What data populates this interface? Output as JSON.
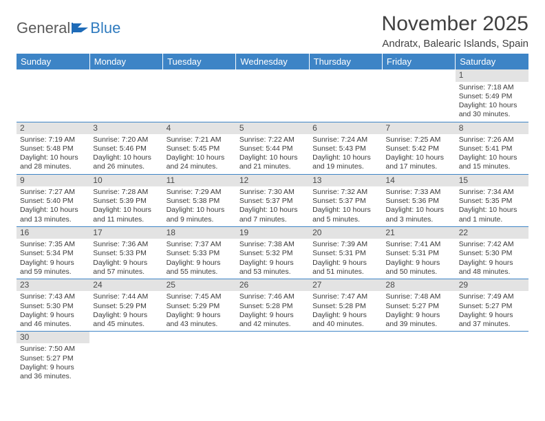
{
  "brand": {
    "word1": "General",
    "word2": "Blue"
  },
  "title": "November 2025",
  "location": "Andratx, Balearic Islands, Spain",
  "colors": {
    "header_bg": "#3d84c6",
    "header_text": "#ffffff",
    "daynum_bg": "#e3e3e3",
    "rule": "#3d84c6",
    "text": "#3a3a3a",
    "title": "#404040"
  },
  "weekdays": [
    "Sunday",
    "Monday",
    "Tuesday",
    "Wednesday",
    "Thursday",
    "Friday",
    "Saturday"
  ],
  "grid": [
    [
      null,
      null,
      null,
      null,
      null,
      null,
      {
        "n": "1",
        "sr": "7:18 AM",
        "ss": "5:49 PM",
        "dl": "10 hours and 30 minutes."
      }
    ],
    [
      {
        "n": "2",
        "sr": "7:19 AM",
        "ss": "5:48 PM",
        "dl": "10 hours and 28 minutes."
      },
      {
        "n": "3",
        "sr": "7:20 AM",
        "ss": "5:46 PM",
        "dl": "10 hours and 26 minutes."
      },
      {
        "n": "4",
        "sr": "7:21 AM",
        "ss": "5:45 PM",
        "dl": "10 hours and 24 minutes."
      },
      {
        "n": "5",
        "sr": "7:22 AM",
        "ss": "5:44 PM",
        "dl": "10 hours and 21 minutes."
      },
      {
        "n": "6",
        "sr": "7:24 AM",
        "ss": "5:43 PM",
        "dl": "10 hours and 19 minutes."
      },
      {
        "n": "7",
        "sr": "7:25 AM",
        "ss": "5:42 PM",
        "dl": "10 hours and 17 minutes."
      },
      {
        "n": "8",
        "sr": "7:26 AM",
        "ss": "5:41 PM",
        "dl": "10 hours and 15 minutes."
      }
    ],
    [
      {
        "n": "9",
        "sr": "7:27 AM",
        "ss": "5:40 PM",
        "dl": "10 hours and 13 minutes."
      },
      {
        "n": "10",
        "sr": "7:28 AM",
        "ss": "5:39 PM",
        "dl": "10 hours and 11 minutes."
      },
      {
        "n": "11",
        "sr": "7:29 AM",
        "ss": "5:38 PM",
        "dl": "10 hours and 9 minutes."
      },
      {
        "n": "12",
        "sr": "7:30 AM",
        "ss": "5:37 PM",
        "dl": "10 hours and 7 minutes."
      },
      {
        "n": "13",
        "sr": "7:32 AM",
        "ss": "5:37 PM",
        "dl": "10 hours and 5 minutes."
      },
      {
        "n": "14",
        "sr": "7:33 AM",
        "ss": "5:36 PM",
        "dl": "10 hours and 3 minutes."
      },
      {
        "n": "15",
        "sr": "7:34 AM",
        "ss": "5:35 PM",
        "dl": "10 hours and 1 minute."
      }
    ],
    [
      {
        "n": "16",
        "sr": "7:35 AM",
        "ss": "5:34 PM",
        "dl": "9 hours and 59 minutes."
      },
      {
        "n": "17",
        "sr": "7:36 AM",
        "ss": "5:33 PM",
        "dl": "9 hours and 57 minutes."
      },
      {
        "n": "18",
        "sr": "7:37 AM",
        "ss": "5:33 PM",
        "dl": "9 hours and 55 minutes."
      },
      {
        "n": "19",
        "sr": "7:38 AM",
        "ss": "5:32 PM",
        "dl": "9 hours and 53 minutes."
      },
      {
        "n": "20",
        "sr": "7:39 AM",
        "ss": "5:31 PM",
        "dl": "9 hours and 51 minutes."
      },
      {
        "n": "21",
        "sr": "7:41 AM",
        "ss": "5:31 PM",
        "dl": "9 hours and 50 minutes."
      },
      {
        "n": "22",
        "sr": "7:42 AM",
        "ss": "5:30 PM",
        "dl": "9 hours and 48 minutes."
      }
    ],
    [
      {
        "n": "23",
        "sr": "7:43 AM",
        "ss": "5:30 PM",
        "dl": "9 hours and 46 minutes."
      },
      {
        "n": "24",
        "sr": "7:44 AM",
        "ss": "5:29 PM",
        "dl": "9 hours and 45 minutes."
      },
      {
        "n": "25",
        "sr": "7:45 AM",
        "ss": "5:29 PM",
        "dl": "9 hours and 43 minutes."
      },
      {
        "n": "26",
        "sr": "7:46 AM",
        "ss": "5:28 PM",
        "dl": "9 hours and 42 minutes."
      },
      {
        "n": "27",
        "sr": "7:47 AM",
        "ss": "5:28 PM",
        "dl": "9 hours and 40 minutes."
      },
      {
        "n": "28",
        "sr": "7:48 AM",
        "ss": "5:27 PM",
        "dl": "9 hours and 39 minutes."
      },
      {
        "n": "29",
        "sr": "7:49 AM",
        "ss": "5:27 PM",
        "dl": "9 hours and 37 minutes."
      }
    ],
    [
      {
        "n": "30",
        "sr": "7:50 AM",
        "ss": "5:27 PM",
        "dl": "9 hours and 36 minutes."
      },
      null,
      null,
      null,
      null,
      null,
      null
    ]
  ],
  "labels": {
    "sunrise": "Sunrise:",
    "sunset": "Sunset:",
    "daylight": "Daylight:"
  }
}
